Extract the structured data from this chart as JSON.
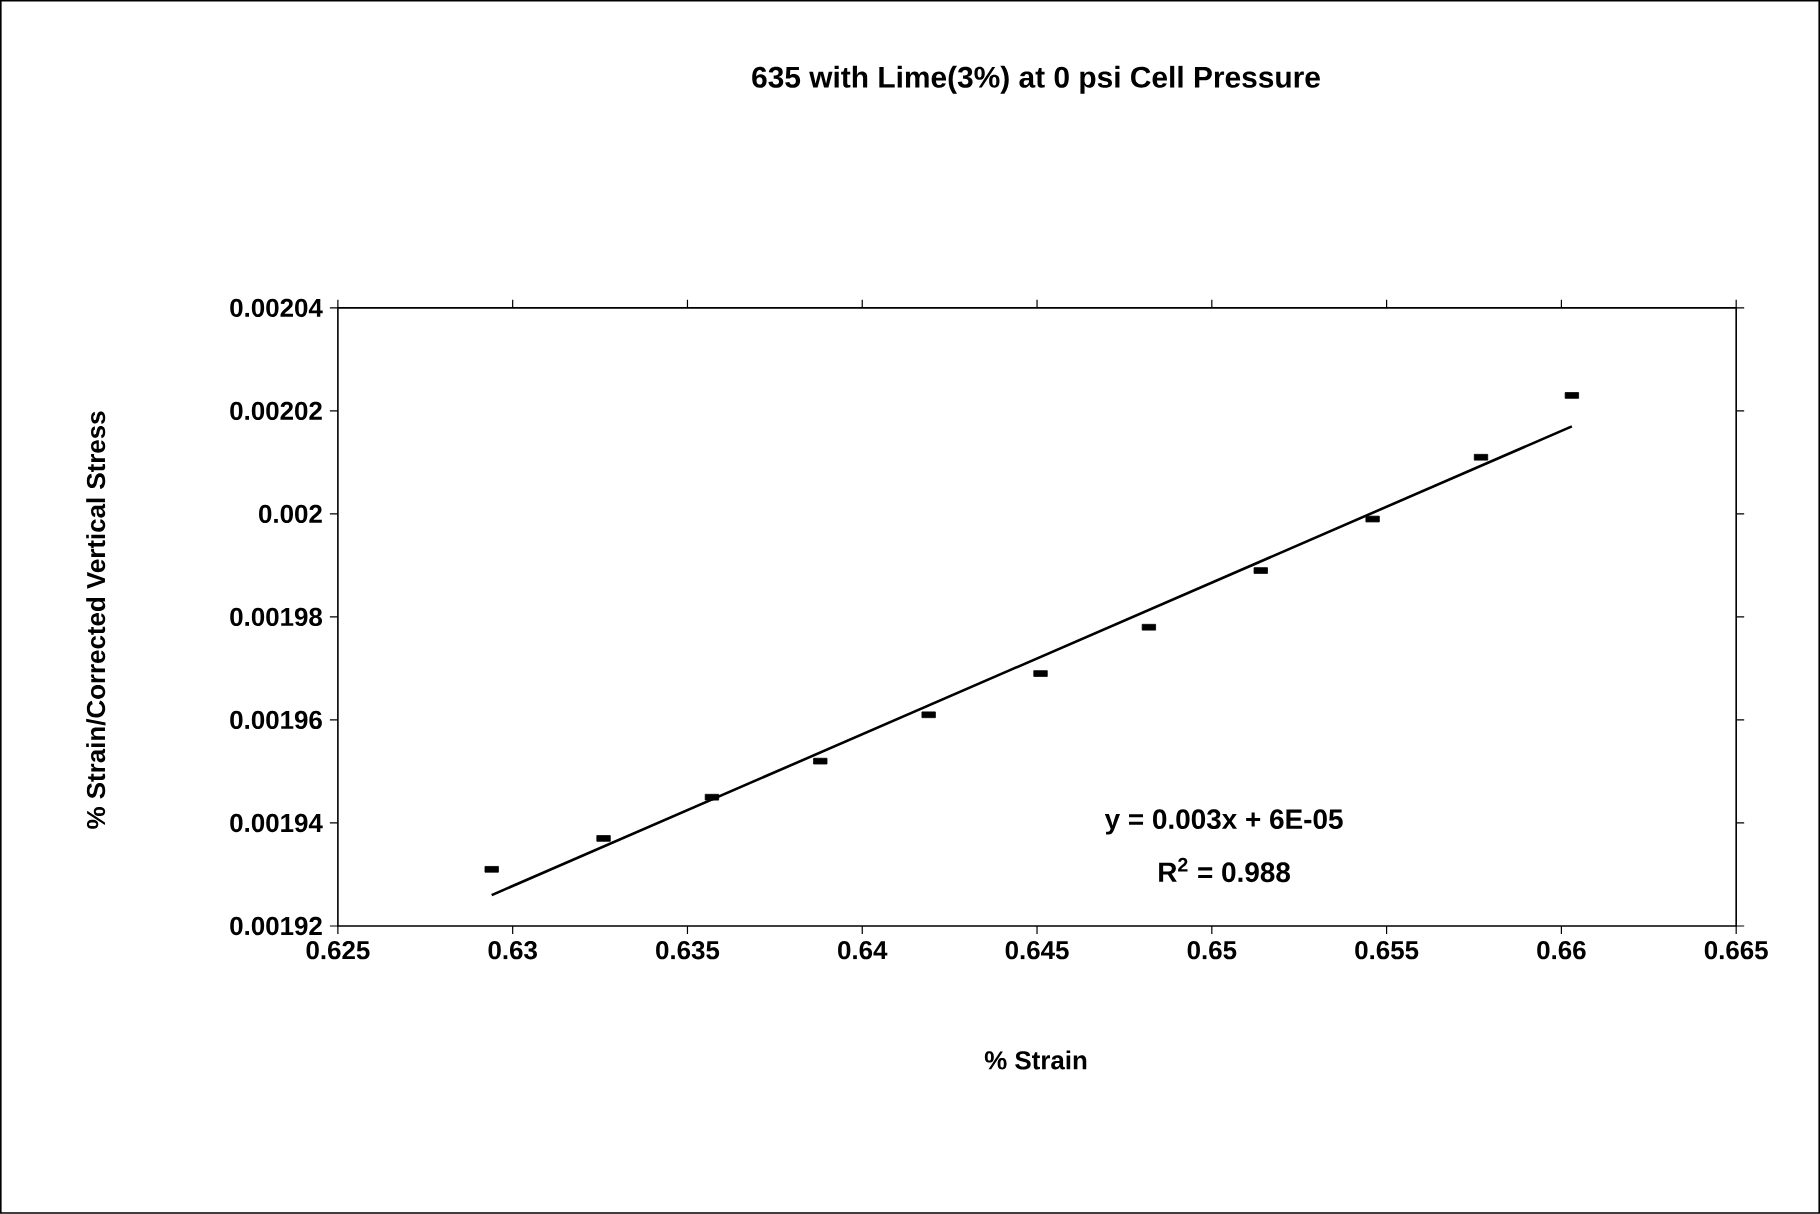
{
  "chart_data": {
    "type": "scatter",
    "title": "635 with Lime(3%) at 0 psi Cell Pressure",
    "xlabel": "% Strain",
    "ylabel": "% Strain/Corrected Vertical Stress",
    "xlim": [
      0.625,
      0.665
    ],
    "xticks": [
      0.625,
      0.63,
      0.635,
      0.64,
      0.645,
      0.65,
      0.655,
      0.66,
      0.665
    ],
    "ylim": [
      0.00192,
      0.00204
    ],
    "yticks": [
      0.00192,
      0.00194,
      0.00196,
      0.00198,
      0.002,
      0.00202,
      0.00204
    ],
    "grid": false,
    "series": [
      {
        "color": "#000000",
        "marker": "square",
        "x": [
          0.6294,
          0.6326,
          0.6357,
          0.6388,
          0.6419,
          0.6451,
          0.6482,
          0.6514,
          0.6546,
          0.6577,
          0.6603
        ],
        "values": [
          0.001931,
          0.001937,
          0.001945,
          0.001952,
          0.001961,
          0.001969,
          0.001978,
          0.001989,
          0.001999,
          0.002011,
          0.002023
        ]
      },
      {
        "type": "line",
        "color": "#000000",
        "x": [
          0.6294,
          0.6603
        ],
        "values": [
          0.001926,
          0.002017
        ]
      }
    ],
    "annotations": [
      "y = 0.003x + 6E-05",
      "R$^{2}$ = 0.988"
    ]
  }
}
